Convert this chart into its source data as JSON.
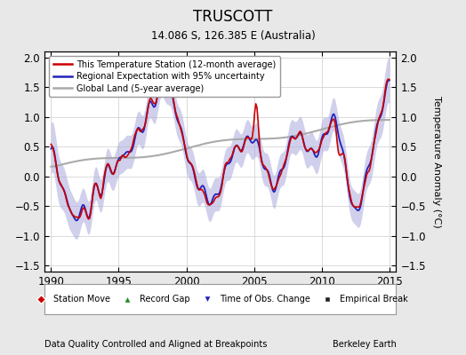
{
  "title": "TRUSCOTT",
  "subtitle": "14.086 S, 126.385 E (Australia)",
  "ylabel": "Temperature Anomaly (°C)",
  "xlabel_left": "Data Quality Controlled and Aligned at Breakpoints",
  "xlabel_right": "Berkeley Earth",
  "ylim": [
    -1.6,
    2.1
  ],
  "xlim": [
    1989.5,
    2015.5
  ],
  "xticks": [
    1990,
    1995,
    2000,
    2005,
    2010,
    2015
  ],
  "yticks": [
    -1.5,
    -1.0,
    -0.5,
    0.0,
    0.5,
    1.0,
    1.5,
    2.0
  ],
  "bg_color": "#e8e8e8",
  "plot_bg_color": "#ffffff",
  "legend_items": [
    {
      "label": "This Temperature Station (12-month average)",
      "color": "#cc0000",
      "lw": 1.5
    },
    {
      "label": "Regional Expectation with 95% uncertainty",
      "color": "#2222bb",
      "lw": 1.5
    },
    {
      "label": "Global Land (5-year average)",
      "color": "#aaaaaa",
      "lw": 1.5
    }
  ],
  "marker_legend": [
    {
      "label": "Station Move",
      "marker": "D",
      "color": "#cc0000"
    },
    {
      "label": "Record Gap",
      "marker": "^",
      "color": "#228822"
    },
    {
      "label": "Time of Obs. Change",
      "marker": "v",
      "color": "#2222bb"
    },
    {
      "label": "Empirical Break",
      "marker": "s",
      "color": "#222222"
    }
  ],
  "uncertainty_color": "#aaaadd",
  "uncertainty_alpha": 0.55
}
